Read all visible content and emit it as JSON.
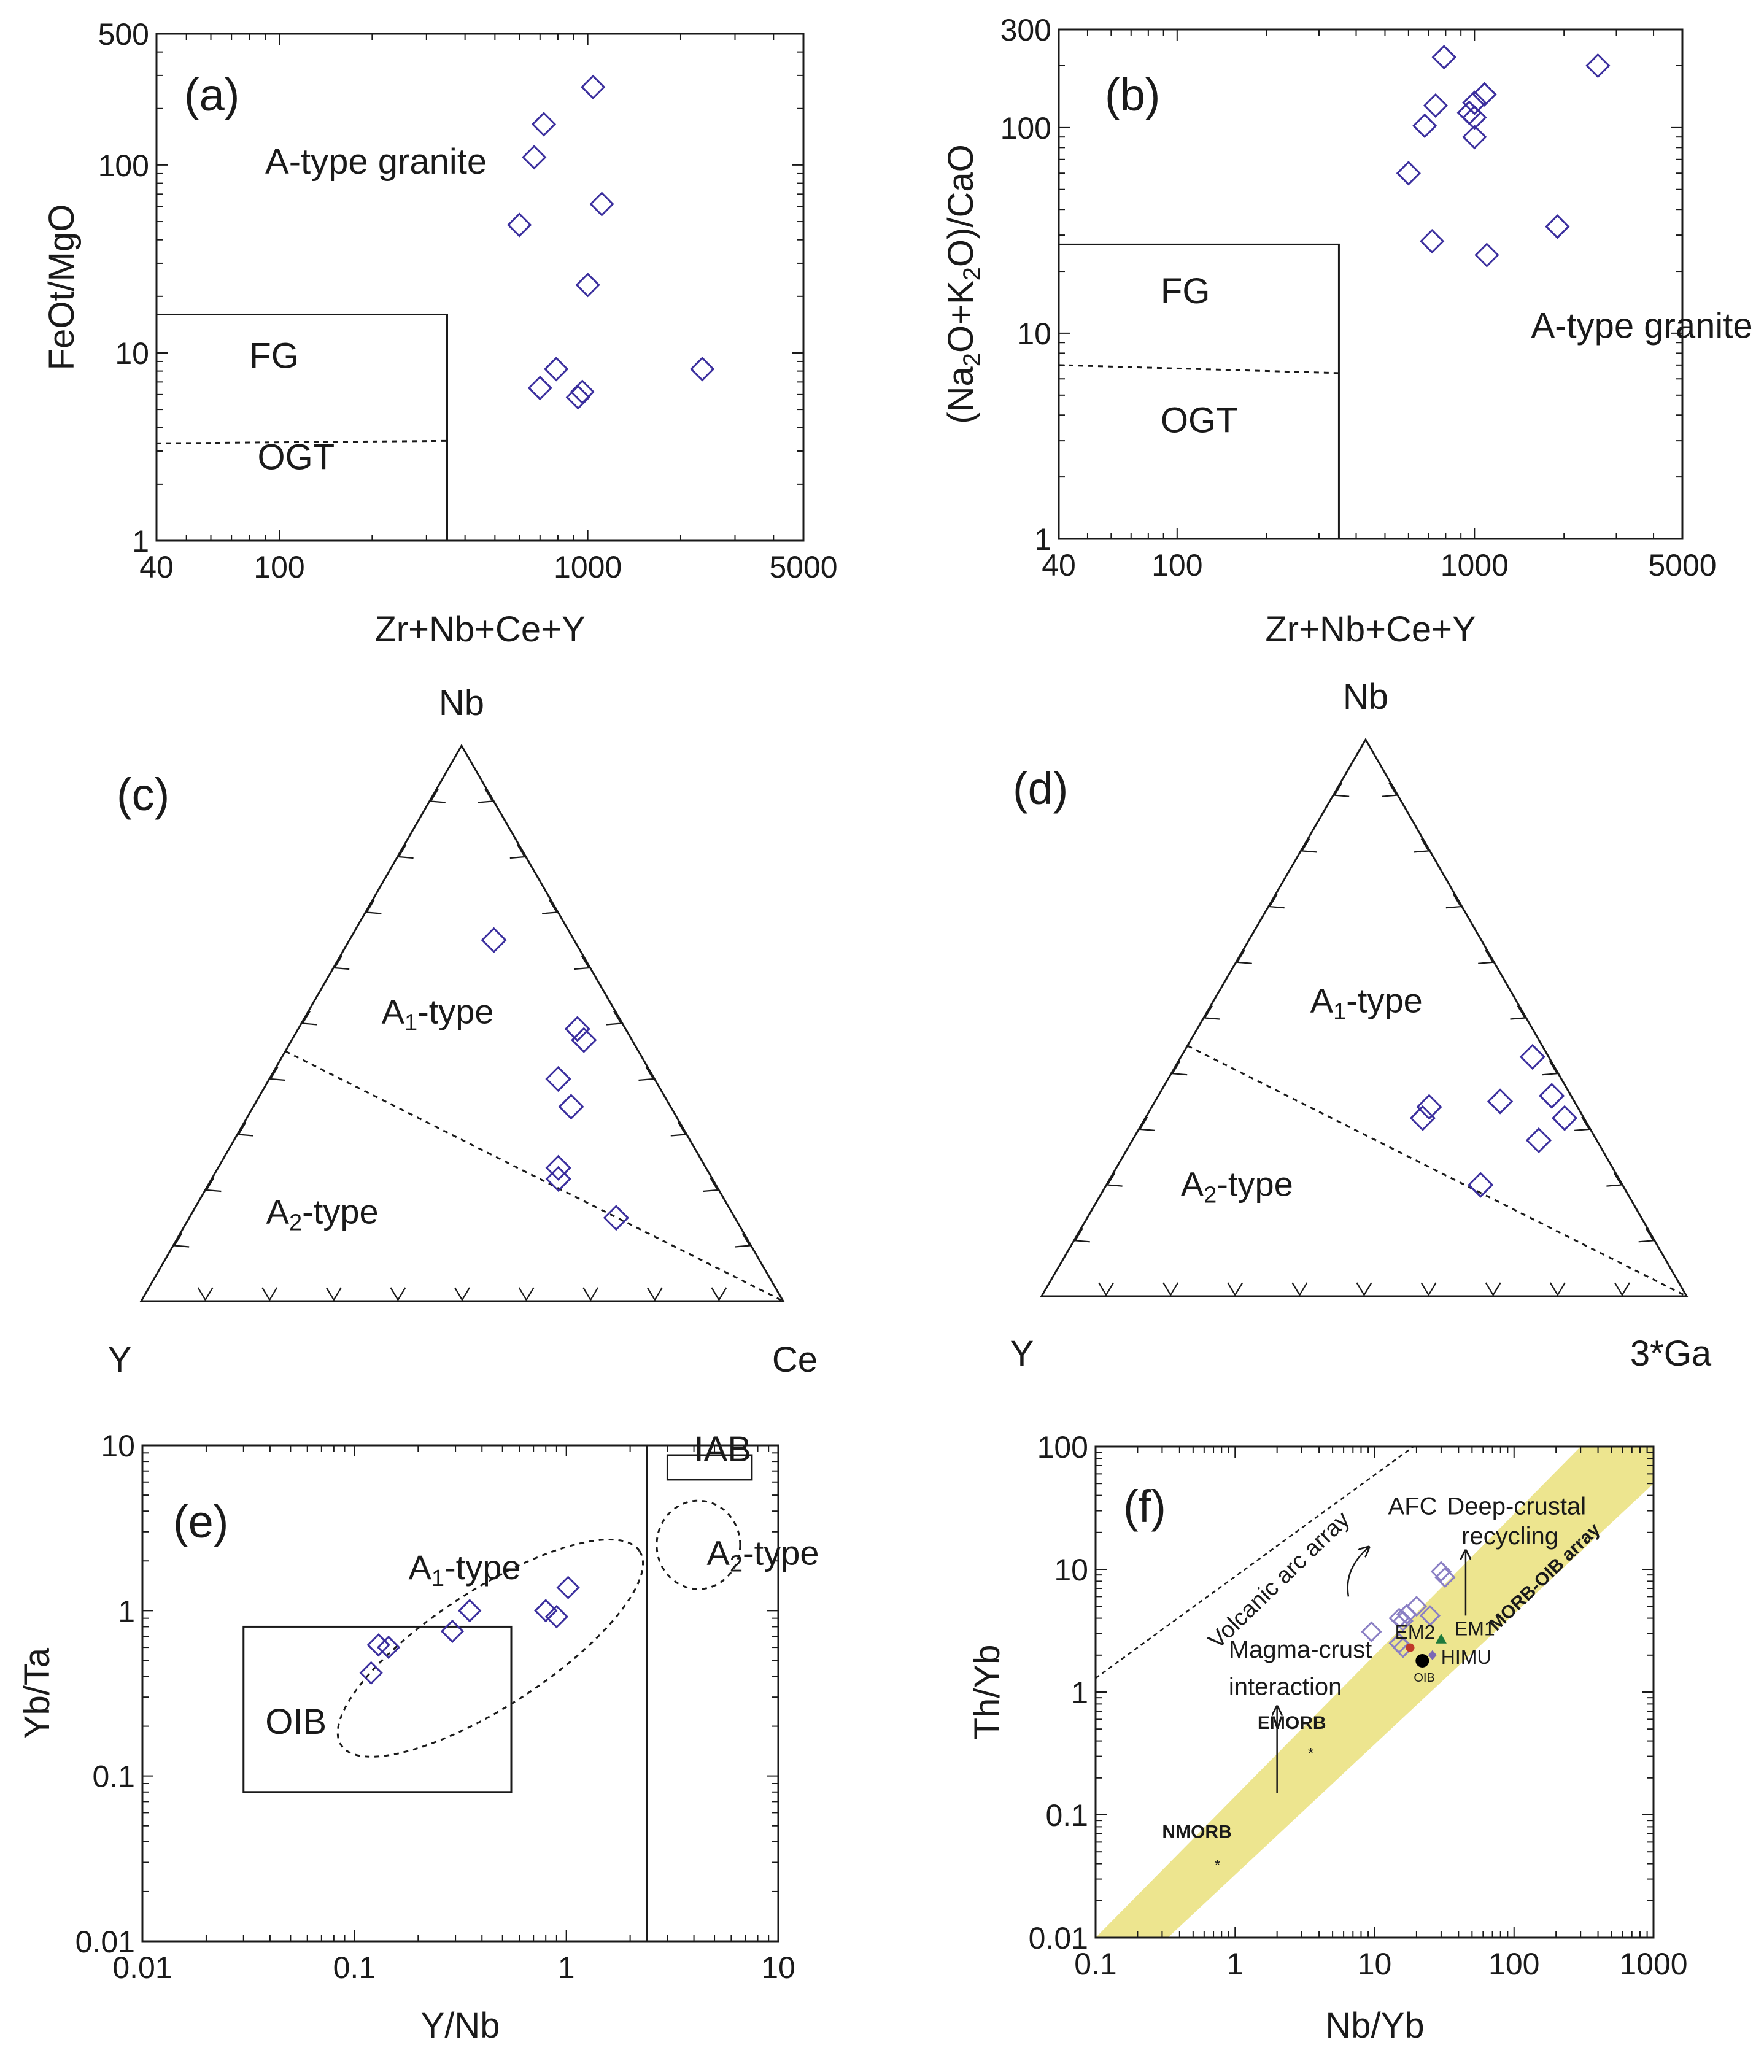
{
  "colors": {
    "marker": "#3b2f9e",
    "axis": "#1a1a1a",
    "band": "#ede58f",
    "green_text": "#2e6b1f",
    "em2": "#c0392b",
    "em1": "#1e7a3c",
    "himu": "#7b68b5",
    "oib": "#000000"
  },
  "chart_data": [
    {
      "id": "a",
      "type": "scatter",
      "panel_label": "(a)",
      "xlabel": "Zr+Nb+Ce+Y",
      "ylabel": "FeOt/MgO",
      "xscale": "log",
      "yscale": "log",
      "xlim": [
        40,
        5000
      ],
      "ylim": [
        1,
        500
      ],
      "xticks": [
        40,
        100,
        1000,
        5000
      ],
      "yticks": [
        1,
        10,
        100,
        500
      ],
      "regions": [
        {
          "label": "A-type granite",
          "at": [
            90,
            90
          ]
        },
        {
          "label": "FG",
          "at": [
            80,
            8.3
          ]
        },
        {
          "label": "OGT",
          "at": [
            85,
            2.4
          ]
        }
      ],
      "box": {
        "x": [
          40,
          350
        ],
        "y": [
          1,
          16
        ]
      },
      "dashed": [
        [
          40,
          3.3
        ],
        [
          350,
          3.4
        ]
      ],
      "points": [
        [
          600,
          48
        ],
        [
          670,
          110
        ],
        [
          720,
          165
        ],
        [
          1040,
          260
        ],
        [
          1110,
          62
        ],
        [
          1000,
          23
        ],
        [
          790,
          8.2
        ],
        [
          700,
          6.5
        ],
        [
          960,
          6.2
        ],
        [
          930,
          5.8
        ],
        [
          2350,
          8.2
        ]
      ]
    },
    {
      "id": "b",
      "type": "scatter",
      "panel_label": "(b)",
      "xlabel": "Zr+Nb+Ce+Y",
      "ylabel_parts": [
        "(Na",
        "2",
        "O+K",
        "2",
        "O)/CaO"
      ],
      "xscale": "log",
      "yscale": "log",
      "xlim": [
        40,
        5000
      ],
      "ylim": [
        1,
        300
      ],
      "xticks": [
        40,
        100,
        1000,
        5000
      ],
      "yticks": [
        1,
        10,
        100,
        300
      ],
      "regions": [
        {
          "label": "A-type granite",
          "at": [
            1550,
            9.5
          ]
        },
        {
          "label": "FG",
          "at": [
            88,
            14
          ]
        },
        {
          "label": "OGT",
          "at": [
            88,
            3.3
          ]
        }
      ],
      "box": {
        "x": [
          40,
          350
        ],
        "y": [
          1,
          27
        ]
      },
      "dashed": [
        [
          40,
          7
        ],
        [
          350,
          6.4
        ]
      ],
      "points": [
        [
          790,
          220
        ],
        [
          740,
          128
        ],
        [
          680,
          102
        ],
        [
          960,
          118
        ],
        [
          1000,
          112
        ],
        [
          1000,
          132
        ],
        [
          1080,
          145
        ],
        [
          1000,
          90
        ],
        [
          600,
          60
        ],
        [
          720,
          28
        ],
        [
          1100,
          24
        ],
        [
          1900,
          33
        ],
        [
          2600,
          200
        ]
      ]
    },
    {
      "id": "c",
      "type": "ternary",
      "panel_label": "(c)",
      "apices": {
        "top": "Nb",
        "left": "Y",
        "right": "Ce"
      },
      "regions": [
        {
          "label_base": "A",
          "label_sub": "1",
          "label_tail": "-type",
          "at": [
            0.48,
            0.5
          ]
        },
        {
          "label_base": "A",
          "label_sub": "2",
          "label_tail": "-type",
          "at": [
            0.3,
            0.14
          ]
        }
      ],
      "divider": [
        [
          0.225,
          0.45
        ],
        [
          1.0,
          0.0
        ]
      ],
      "points": [
        [
          0.55,
          0.65
        ],
        [
          0.68,
          0.49
        ],
        [
          0.69,
          0.47
        ],
        [
          0.65,
          0.4
        ],
        [
          0.67,
          0.35
        ],
        [
          0.65,
          0.24
        ],
        [
          0.65,
          0.22
        ],
        [
          0.74,
          0.15
        ]
      ]
    },
    {
      "id": "d",
      "type": "ternary",
      "panel_label": "(d)",
      "apices": {
        "top": "Nb",
        "left": "Y",
        "right": "3*Ga"
      },
      "regions": [
        {
          "label_base": "A",
          "label_sub": "1",
          "label_tail": "-type",
          "at": [
            0.52,
            0.51
          ]
        },
        {
          "label_base": "A",
          "label_sub": "2",
          "label_tail": "-type",
          "at": [
            0.32,
            0.18
          ]
        }
      ],
      "divider": [
        [
          0.225,
          0.45
        ],
        [
          1.0,
          0.0
        ]
      ],
      "points": [
        [
          0.6,
          0.34
        ],
        [
          0.59,
          0.32
        ],
        [
          0.76,
          0.43
        ],
        [
          0.71,
          0.35
        ],
        [
          0.79,
          0.36
        ],
        [
          0.81,
          0.32
        ],
        [
          0.77,
          0.28
        ],
        [
          0.68,
          0.2
        ]
      ]
    },
    {
      "id": "e",
      "type": "scatter",
      "panel_label": "(e)",
      "xlabel": "Y/Nb",
      "ylabel": "Yb/Ta",
      "xscale": "log",
      "yscale": "log",
      "xlim": [
        0.01,
        10
      ],
      "ylim": [
        0.01,
        10
      ],
      "xticks": [
        0.01,
        0.1,
        1,
        10
      ],
      "xtick_labels": [
        "0.01",
        "0.1",
        "1",
        "10"
      ],
      "yticks": [
        0.01,
        0.1,
        1,
        10
      ],
      "ytick_labels": [
        "0.01",
        "0.1",
        "1",
        "10"
      ],
      "regions": [
        {
          "label": "OIB",
          "at": [
            0.038,
            0.18
          ]
        },
        {
          "label_base": "A",
          "label_sub": "1",
          "label_tail": "-type",
          "at": [
            0.18,
            1.55
          ]
        },
        {
          "label_base": "A",
          "label_sub": "2",
          "label_tail": "-type",
          "at": [
            4.6,
            1.9
          ]
        },
        {
          "label": "IAB",
          "at": [
            4.0,
            8.0
          ]
        }
      ],
      "oib_box": {
        "x": [
          0.03,
          0.55
        ],
        "y": [
          0.08,
          0.8
        ]
      },
      "iab_box": {
        "x": [
          3.0,
          7.5
        ],
        "y": [
          6.2,
          10
        ]
      },
      "vertical_line_x": 2.4,
      "points": [
        [
          0.12,
          0.42
        ],
        [
          0.13,
          0.62
        ],
        [
          0.145,
          0.6
        ],
        [
          0.29,
          0.75
        ],
        [
          0.35,
          1.0
        ],
        [
          0.8,
          1.0
        ],
        [
          0.9,
          0.92
        ],
        [
          1.02,
          1.38
        ]
      ]
    },
    {
      "id": "f",
      "type": "scatter",
      "panel_label": "(f)",
      "xlabel": "Nb/Yb",
      "ylabel": "Th/Yb",
      "xscale": "log",
      "yscale": "log",
      "xlim": [
        0.1,
        1000
      ],
      "ylim": [
        0.01,
        100
      ],
      "xticks": [
        0.1,
        1,
        10,
        100,
        1000
      ],
      "xtick_labels": [
        "0.1",
        "1",
        "10",
        "100",
        "1000"
      ],
      "yticks": [
        0.01,
        0.1,
        1,
        10,
        100
      ],
      "ytick_labels": [
        "0.01",
        "0.1",
        "1",
        "10",
        "100"
      ],
      "band_lower": [
        [
          0.33,
          0.01
        ],
        [
          1000,
          50
        ]
      ],
      "band_upper": [
        [
          0.1,
          0.01
        ],
        [
          300,
          100
        ]
      ],
      "arc_line": [
        [
          0.1,
          1.3
        ],
        [
          19,
          100
        ]
      ],
      "labels": {
        "volcanic_arc": "Volcanic arc array",
        "morb_oib": "MORB-OIB array",
        "afc": "AFC",
        "deep": [
          "Deep-crustal",
          "recycling"
        ],
        "magma": [
          "Magma-crust",
          "interaction"
        ],
        "emorb": "EMORB",
        "nmorb": "NMORB",
        "em2": "EM2",
        "em1": "EM1",
        "himu": "HIMU",
        "oib": "OIB"
      },
      "reference_points": [
        {
          "name": "EM2",
          "xy": [
            18,
            2.3
          ]
        },
        {
          "name": "EM1",
          "xy": [
            30,
            2.7
          ]
        },
        {
          "name": "HIMU",
          "xy": [
            26,
            2.0
          ]
        },
        {
          "name": "OIB",
          "xy": [
            22,
            1.8
          ]
        },
        {
          "name": "EMORB",
          "xy": [
            3.5,
            0.4
          ]
        },
        {
          "name": "NMORB",
          "xy": [
            0.75,
            0.05
          ]
        }
      ],
      "points": [
        [
          9.5,
          3.1
        ],
        [
          15,
          4.0
        ],
        [
          16,
          3.8
        ],
        [
          17,
          4.3
        ],
        [
          20,
          5.0
        ],
        [
          15,
          2.5
        ],
        [
          16,
          2.3
        ],
        [
          25,
          4.2
        ],
        [
          30,
          9.6
        ],
        [
          32,
          8.6
        ]
      ]
    }
  ]
}
